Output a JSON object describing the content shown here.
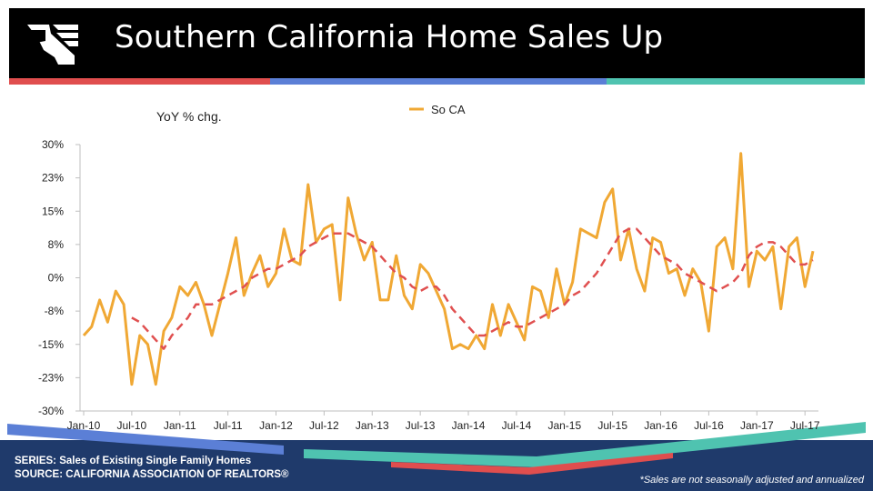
{
  "header": {
    "title": "Southern California Home Sales Up"
  },
  "colors": {
    "header_bg": "#000000",
    "series": "#f0a834",
    "trend": "#e05050",
    "footer": "#1f3a6b"
  },
  "footer": {
    "series_line": "SERIES: Sales of Existing Single Family Homes",
    "source_line": "SOURCE:  CALIFORNIA ASSOCIATION OF REALTORS®",
    "note": "*Sales are not seasonally adjusted and annualized"
  },
  "chart_data": {
    "type": "line",
    "ylabel": "YoY % chg.",
    "yticks": [
      "30%",
      "23%",
      "15%",
      "8%",
      "0%",
      "-8%",
      "-15%",
      "-23%",
      "-30%"
    ],
    "ylim": [
      -30,
      30
    ],
    "xticks": [
      "Jan-10",
      "Jul-10",
      "Jan-11",
      "Jul-11",
      "Jan-12",
      "Jul-12",
      "Jan-13",
      "Jul-13",
      "Jan-14",
      "Jul-14",
      "Jan-15",
      "Jul-15",
      "Jan-16",
      "Jul-16",
      "Jan-17",
      "Jul-17"
    ],
    "legend_position": "top",
    "series": [
      {
        "name": "So CA",
        "values": [
          -13,
          -11,
          -5,
          -10,
          -3,
          -6,
          -24,
          -13,
          -15,
          -24,
          -12,
          -9,
          -2,
          -4,
          -1,
          -6,
          -13,
          -6,
          1,
          9,
          -4,
          1,
          5,
          -2,
          1,
          11,
          4,
          3,
          21,
          8,
          11,
          12,
          -5,
          18,
          10,
          4,
          8,
          -5,
          -5,
          5,
          -4,
          -7,
          3,
          1,
          -3,
          -7,
          -16,
          -15,
          -16,
          -13,
          -16,
          -6,
          -13,
          -6,
          -10,
          -14,
          -2,
          -3,
          -9,
          2,
          -6,
          -1,
          11,
          10,
          9,
          17,
          20,
          4,
          11,
          2,
          -3,
          9,
          8,
          1,
          2,
          -4,
          2,
          -1,
          -12,
          7,
          9,
          2,
          28,
          -2,
          6,
          4,
          7,
          -7,
          7,
          9,
          -2,
          6
        ]
      },
      {
        "name": "",
        "values": [
          null,
          null,
          null,
          null,
          null,
          null,
          -9,
          -10,
          -12,
          -14,
          -16,
          -13,
          -11,
          -9,
          -6,
          -6,
          -6,
          -5,
          -4,
          -3,
          -2,
          0,
          1,
          2,
          2,
          3,
          4,
          5,
          7,
          8,
          9,
          10,
          10,
          10,
          9,
          8,
          7,
          5,
          3,
          1,
          0,
          -2,
          -3,
          -2,
          -2,
          -4,
          -7,
          -9,
          -11,
          -13,
          -13,
          -12,
          -11,
          -10,
          -11,
          -11,
          -10,
          -9,
          -8,
          -7,
          -6,
          -4,
          -3,
          -1,
          1,
          4,
          7,
          10,
          11,
          11,
          9,
          7,
          5,
          4,
          3,
          1,
          0,
          -1,
          -2,
          -3,
          -2,
          -1,
          1,
          5,
          7,
          8,
          8,
          7,
          5,
          3,
          3,
          4
        ]
      }
    ]
  }
}
